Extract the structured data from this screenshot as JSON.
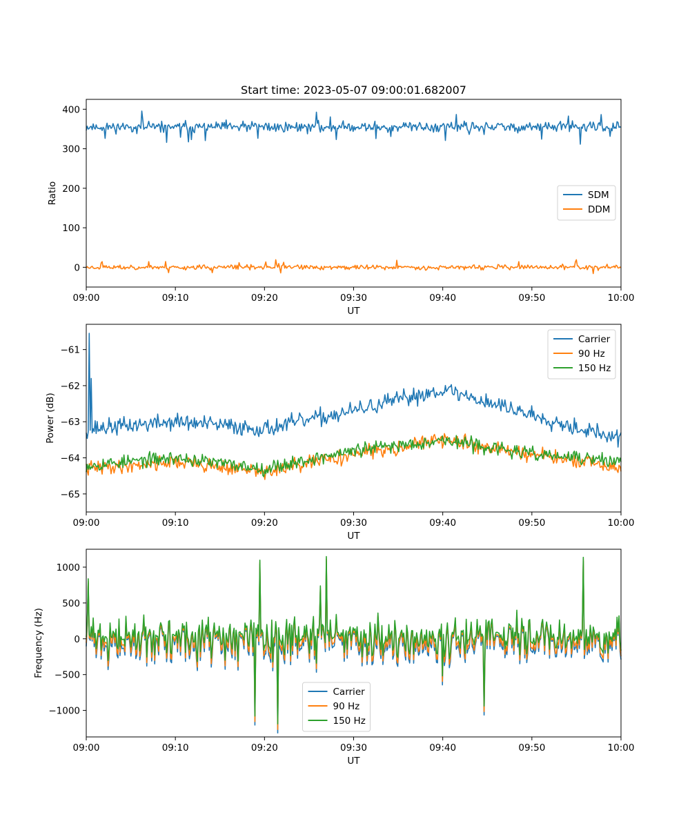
{
  "figure": {
    "title": "Start time: 2023-05-07 09:00:01.682007"
  },
  "chart_data": [
    {
      "type": "line",
      "title": "Start time: 2023-05-07 09:00:01.682007",
      "xlabel": "UT",
      "ylabel": "Ratio",
      "xlim": [
        "09:00",
        "10:00"
      ],
      "xticks": [
        "09:00",
        "09:10",
        "09:20",
        "09:30",
        "09:40",
        "09:50",
        "10:00"
      ],
      "ylim": [
        -50,
        425
      ],
      "yticks": [
        0,
        100,
        200,
        300,
        400
      ],
      "legend": "center-right",
      "series": [
        {
          "name": "SDM",
          "color": "#1f77b4",
          "mean": 355,
          "amplitude": 20,
          "noise_seed": 11
        },
        {
          "name": "DDM",
          "color": "#ff7f0e",
          "mean": 0,
          "amplitude": 9,
          "noise_seed": 23
        }
      ]
    },
    {
      "type": "line",
      "xlabel": "UT",
      "ylabel": "Power (dB)",
      "xlim": [
        "09:00",
        "10:00"
      ],
      "xticks": [
        "09:00",
        "09:10",
        "09:20",
        "09:30",
        "09:40",
        "09:50",
        "10:00"
      ],
      "ylim": [
        -65.5,
        -60.3
      ],
      "yticks": [
        -65,
        -64,
        -63,
        -62,
        -61
      ],
      "legend": "top-right",
      "series": [
        {
          "name": "Carrier",
          "color": "#1f77b4",
          "trend": [
            [
              0,
              -63.2
            ],
            [
              10,
              -63.0
            ],
            [
              20,
              -63.2
            ],
            [
              30,
              -62.7
            ],
            [
              40,
              -62.1
            ],
            [
              50,
              -62.8
            ],
            [
              60,
              -63.5
            ]
          ],
          "amplitude": 0.35,
          "noise_seed": 37
        },
        {
          "name": "90 Hz",
          "color": "#ff7f0e",
          "trend": [
            [
              0,
              -64.3
            ],
            [
              10,
              -64.1
            ],
            [
              20,
              -64.4
            ],
            [
              30,
              -63.9
            ],
            [
              40,
              -63.5
            ],
            [
              50,
              -63.9
            ],
            [
              60,
              -64.3
            ]
          ],
          "amplitude": 0.3,
          "noise_seed": 41
        },
        {
          "name": "150 Hz",
          "color": "#2ca02c",
          "trend": [
            [
              0,
              -64.2
            ],
            [
              10,
              -64.0
            ],
            [
              20,
              -64.3
            ],
            [
              30,
              -63.8
            ],
            [
              40,
              -63.5
            ],
            [
              50,
              -63.9
            ],
            [
              60,
              -64.1
            ]
          ],
          "amplitude": 0.28,
          "noise_seed": 53
        }
      ]
    },
    {
      "type": "line",
      "xlabel": "UT",
      "ylabel": "Frequency (Hz)",
      "xlim": [
        "09:00",
        "10:00"
      ],
      "xticks": [
        "09:00",
        "09:10",
        "09:20",
        "09:30",
        "09:40",
        "09:50",
        "10:00"
      ],
      "ylim": [
        -1370,
        1250
      ],
      "yticks": [
        -1000,
        -500,
        0,
        500,
        1000
      ],
      "legend": "lower-center",
      "series": [
        {
          "name": "Carrier",
          "color": "#1f77b4",
          "offset": -60,
          "scale": 1.0
        },
        {
          "name": "90 Hz",
          "color": "#ff7f0e",
          "offset": -25,
          "scale": 1.0
        },
        {
          "name": "150 Hz",
          "color": "#2ca02c",
          "offset": 30,
          "scale": 1.0
        }
      ],
      "base_amplitude": 300,
      "noise_seed": 71
    }
  ]
}
